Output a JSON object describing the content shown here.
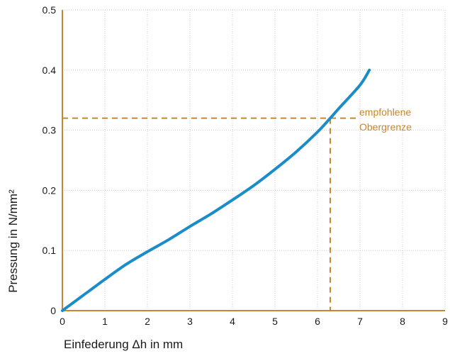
{
  "chart_data": {
    "type": "line",
    "title": "",
    "xlabel": "Einfederung Δh in mm",
    "ylabel": "Pressung in N/mm²",
    "xlim": [
      0,
      9
    ],
    "ylim": [
      0,
      0.5
    ],
    "x_ticks": [
      "0",
      "1",
      "2",
      "3",
      "4",
      "5",
      "6",
      "7",
      "8",
      "9"
    ],
    "y_ticks": [
      "0",
      "0.1",
      "0.2",
      "0.3",
      "0.4",
      "0.5"
    ],
    "grid": true,
    "series": [
      {
        "x": [
          0,
          0.25,
          0.5,
          0.75,
          1,
          1.5,
          2,
          2.5,
          3,
          3.5,
          4,
          4.5,
          5,
          5.5,
          6,
          6.3,
          6.5,
          7,
          7.22
        ],
        "y": [
          0,
          0.013,
          0.026,
          0.039,
          0.052,
          0.077,
          0.098,
          0.118,
          0.14,
          0.161,
          0.184,
          0.208,
          0.235,
          0.264,
          0.297,
          0.32,
          0.336,
          0.375,
          0.4
        ]
      }
    ],
    "annotations": [
      {
        "text_lines": [
          "empfohlene",
          "Obergrenze"
        ],
        "x": 6.3,
        "y": 0.32
      }
    ]
  },
  "colors": {
    "curve": "#1a8cc8",
    "axis": "#c8862e",
    "grid": "#c8c8c8",
    "annotation": "#c8862e",
    "text": "#1a1a1a"
  }
}
